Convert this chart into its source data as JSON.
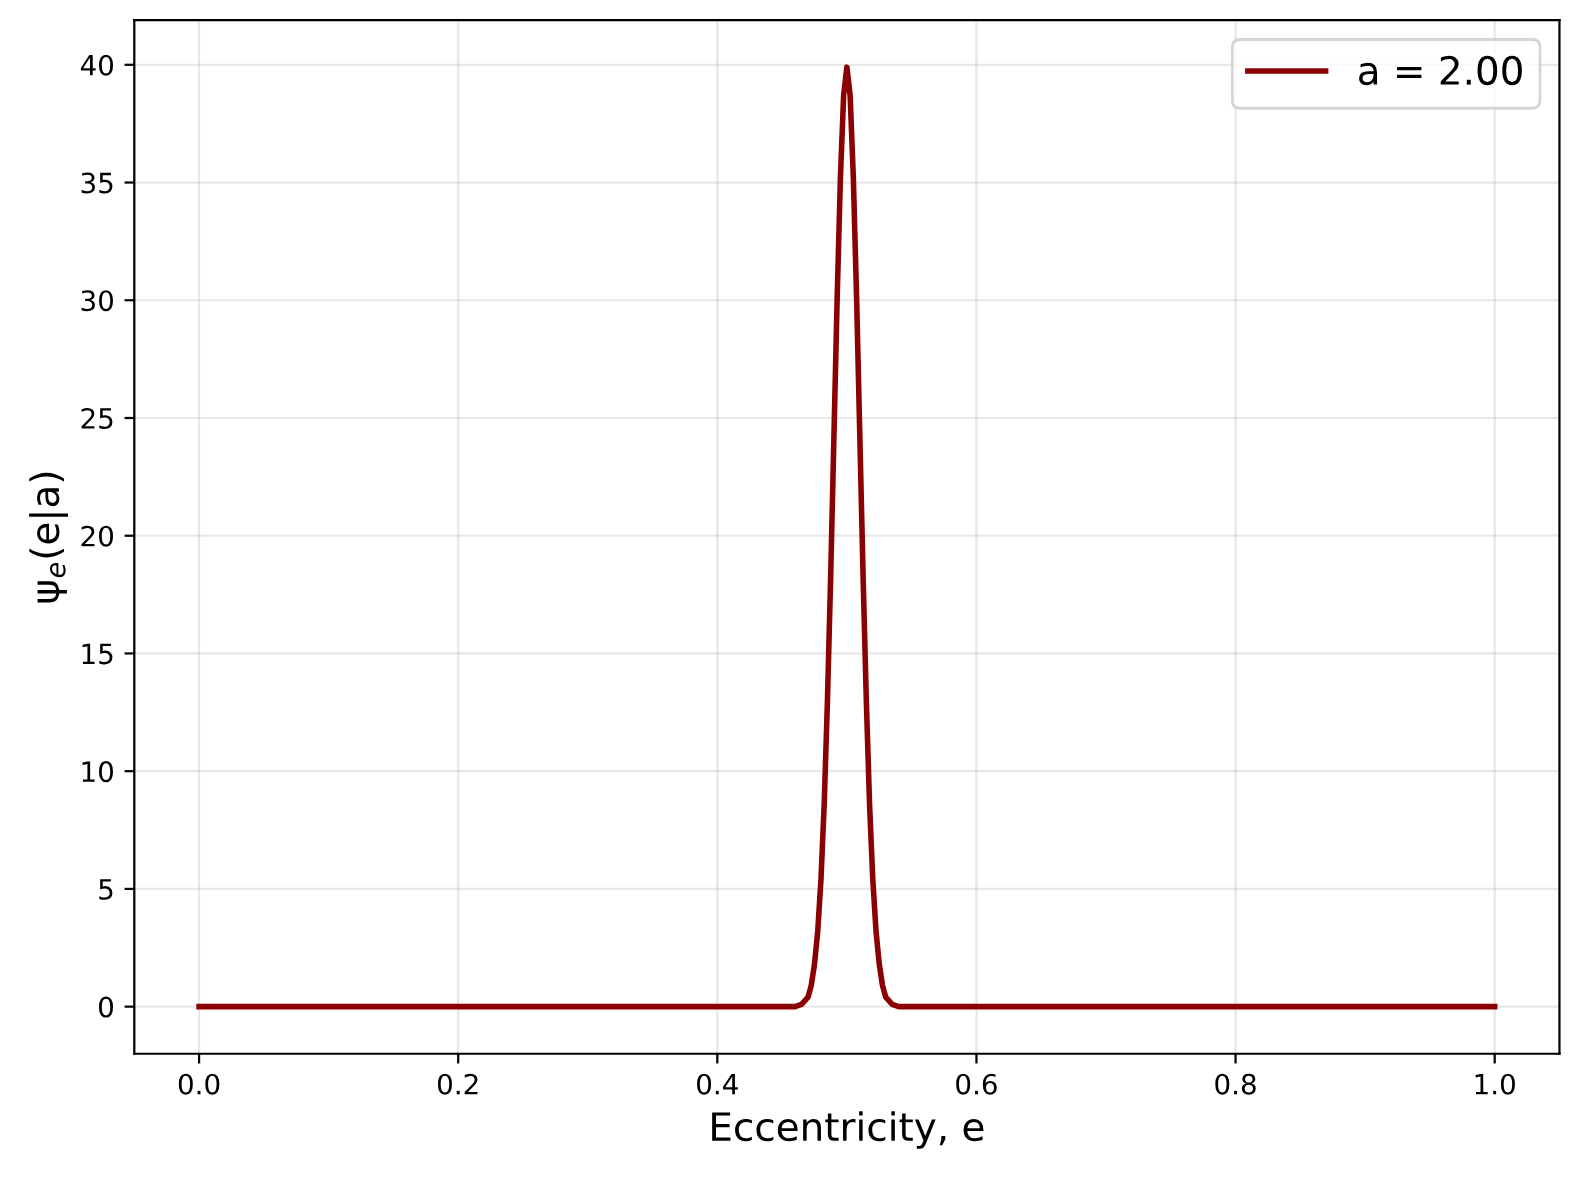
{
  "chart_data": {
    "type": "line",
    "xlabel": "Eccentricity, e",
    "ylabel": "ψ$_{e}$(e|a)",
    "x": [
      0.0,
      0.1,
      0.2,
      0.3,
      0.4,
      0.45,
      0.46,
      0.465,
      0.47,
      0.4725,
      0.475,
      0.4775,
      0.48,
      0.4825,
      0.485,
      0.4875,
      0.49,
      0.4925,
      0.495,
      0.4975,
      0.5,
      0.5025,
      0.505,
      0.5075,
      0.51,
      0.5125,
      0.515,
      0.5175,
      0.52,
      0.5225,
      0.525,
      0.5275,
      0.53,
      0.535,
      0.54,
      0.55,
      0.6,
      0.7,
      0.8,
      0.9,
      1.0
    ],
    "series": [
      {
        "name": "a = 2.00",
        "color": "#8b0000",
        "values": [
          0.0,
          0.0,
          0.0,
          0.0,
          0.0,
          0.0,
          0.0,
          0.1,
          0.4,
          0.9,
          1.8,
          3.2,
          5.4,
          8.6,
          13.0,
          18.3,
          24.2,
          30.1,
          35.2,
          38.7,
          39.9,
          38.7,
          35.2,
          30.1,
          24.2,
          18.3,
          13.0,
          8.6,
          5.4,
          3.2,
          1.8,
          0.9,
          0.4,
          0.1,
          0.0,
          0.0,
          0.0,
          0.0,
          0.0,
          0.0,
          0.0
        ]
      }
    ],
    "xlim": [
      -0.05,
      1.05
    ],
    "ylim": [
      -2.0,
      41.9
    ],
    "xticks": [
      {
        "value": 0.0,
        "label": "0.0"
      },
      0.2,
      0.4,
      0.6,
      0.8,
      {
        "value": 1.0,
        "label": "1.0"
      }
    ],
    "yticks": [
      0,
      5,
      10,
      15,
      20,
      25,
      30,
      35,
      40
    ],
    "grid": true,
    "legend": "top right",
    "line_style": "solid",
    "marker": "none"
  }
}
